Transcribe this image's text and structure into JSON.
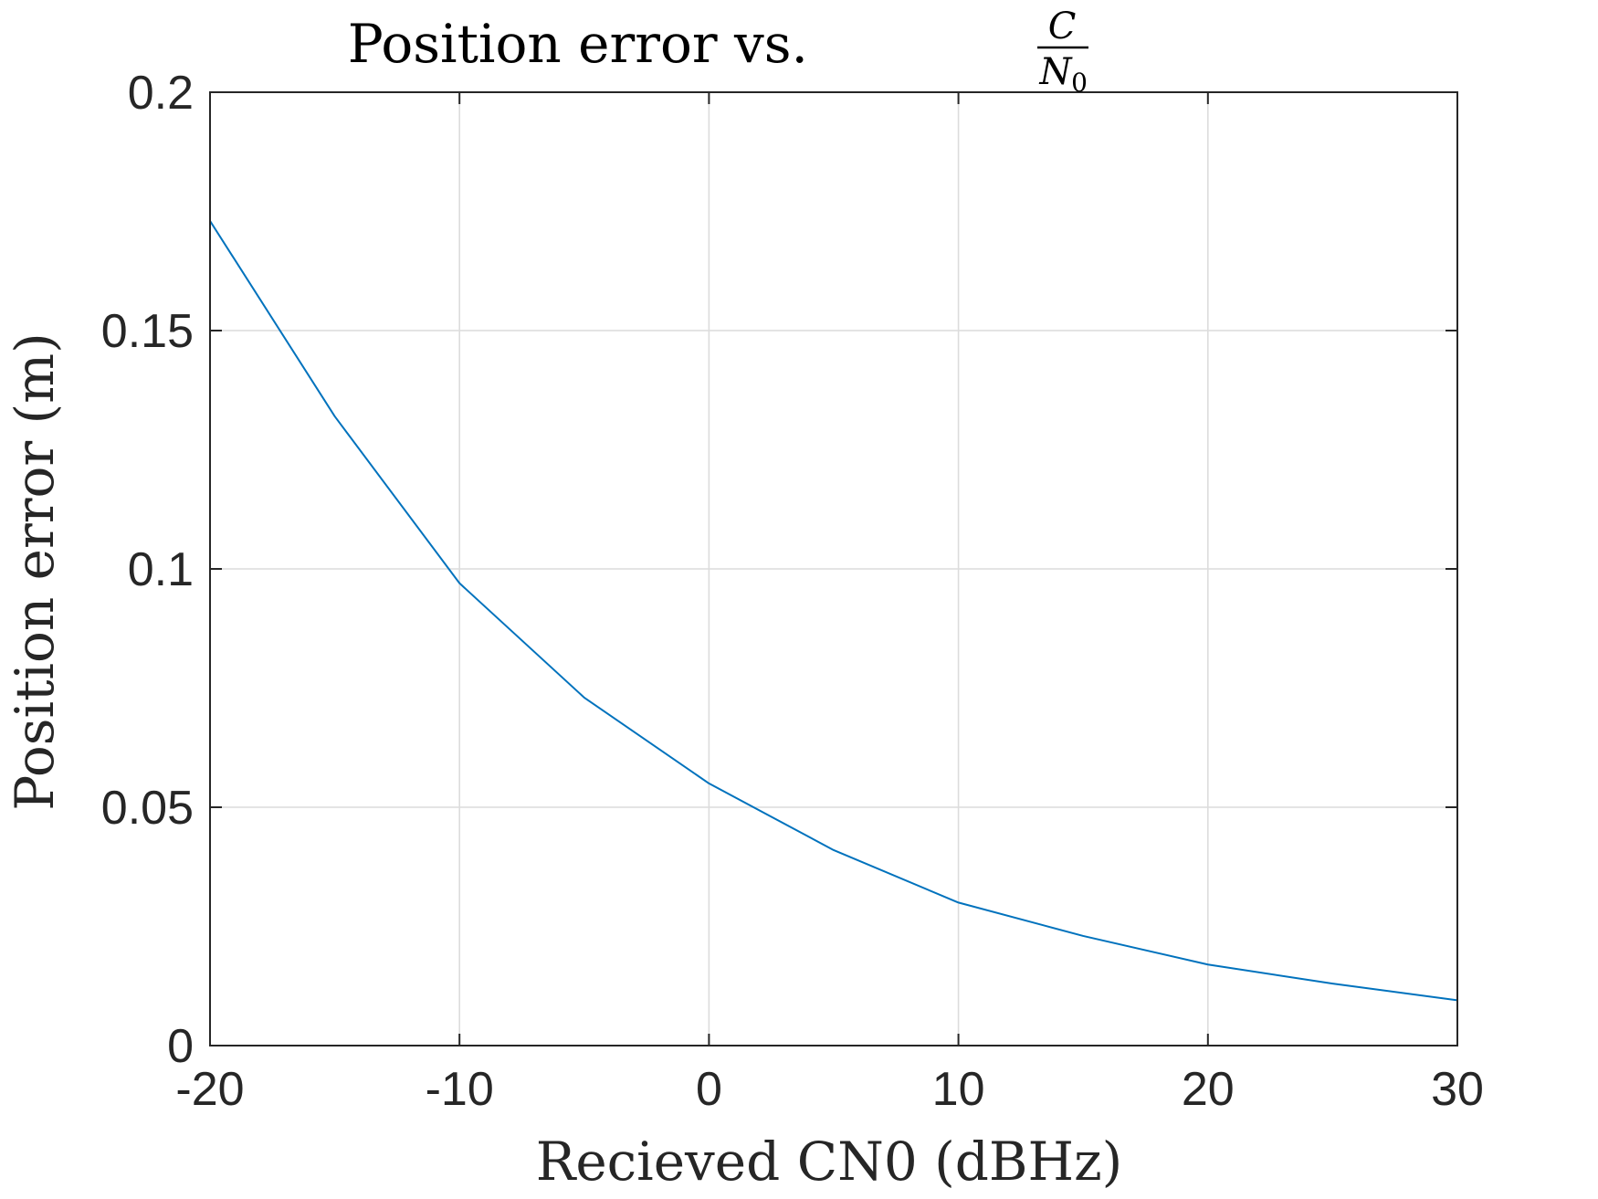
{
  "chart_data": {
    "type": "line",
    "title": "Position error vs.",
    "title_fraction": {
      "numerator": "C",
      "denominator": "N",
      "denominator_subscript": "0"
    },
    "xlabel": "Recieved CN0 (dBHz)",
    "ylabel": "Position error (m)",
    "xlim": [
      -20,
      30
    ],
    "ylim": [
      0,
      0.2
    ],
    "xticks": [
      -20,
      -10,
      0,
      10,
      20,
      30
    ],
    "xtick_labels": [
      "-20",
      "-10",
      "0",
      "10",
      "20",
      "30"
    ],
    "yticks": [
      0,
      0.05,
      0.1,
      0.15,
      0.2
    ],
    "ytick_labels": [
      "0",
      "0.05",
      "0.1",
      "0.15",
      "0.2"
    ],
    "grid": true,
    "series": [
      {
        "color": "#0072BD",
        "x": [
          -20,
          -15,
          -10,
          -5,
          0,
          5,
          10,
          15,
          20,
          25,
          30
        ],
        "y": [
          0.173,
          0.132,
          0.097,
          0.073,
          0.055,
          0.041,
          0.03,
          0.023,
          0.017,
          0.013,
          0.0095
        ]
      }
    ]
  }
}
